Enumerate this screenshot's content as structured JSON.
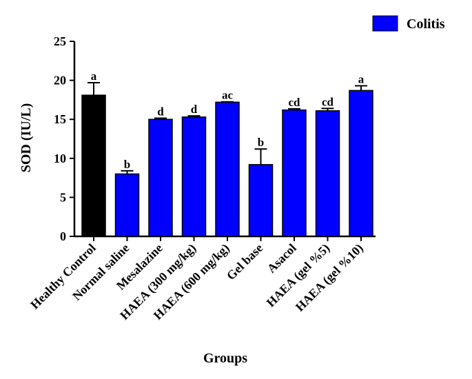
{
  "chart_data": {
    "type": "bar",
    "title": "",
    "xlabel": "Groups",
    "ylabel": "SOD (IU/L)",
    "ylim": [
      0,
      25
    ],
    "yticks": [
      "0",
      "5",
      "10",
      "15",
      "20",
      "25"
    ],
    "grid": false,
    "legend_position": "top-right",
    "categories": [
      "Healthy Control",
      "Normal saline",
      "Mesalazine",
      "HAEA (300 mg/kg)",
      "HAEA (600 mg/kg)",
      "Gel base",
      "Asacol",
      "HAEA (gel %5)",
      "HAEA (gel %10)"
    ],
    "values": [
      18.1,
      8.0,
      15.0,
      15.3,
      17.2,
      9.2,
      16.2,
      16.1,
      18.7
    ],
    "errors": [
      1.6,
      0.4,
      0.15,
      0.15,
      0.05,
      2.0,
      0.15,
      0.3,
      0.6
    ],
    "annotations": [
      "a",
      "b",
      "d",
      "d",
      "ac",
      "b",
      "cd",
      "cd",
      "a"
    ],
    "colors": [
      "#000000",
      "#0000ff",
      "#0000ff",
      "#0000ff",
      "#0000ff",
      "#0000ff",
      "#0000ff",
      "#0000ff",
      "#0000ff"
    ],
    "legend": [
      {
        "name": "Colitis",
        "color": "#0000ff"
      }
    ]
  }
}
